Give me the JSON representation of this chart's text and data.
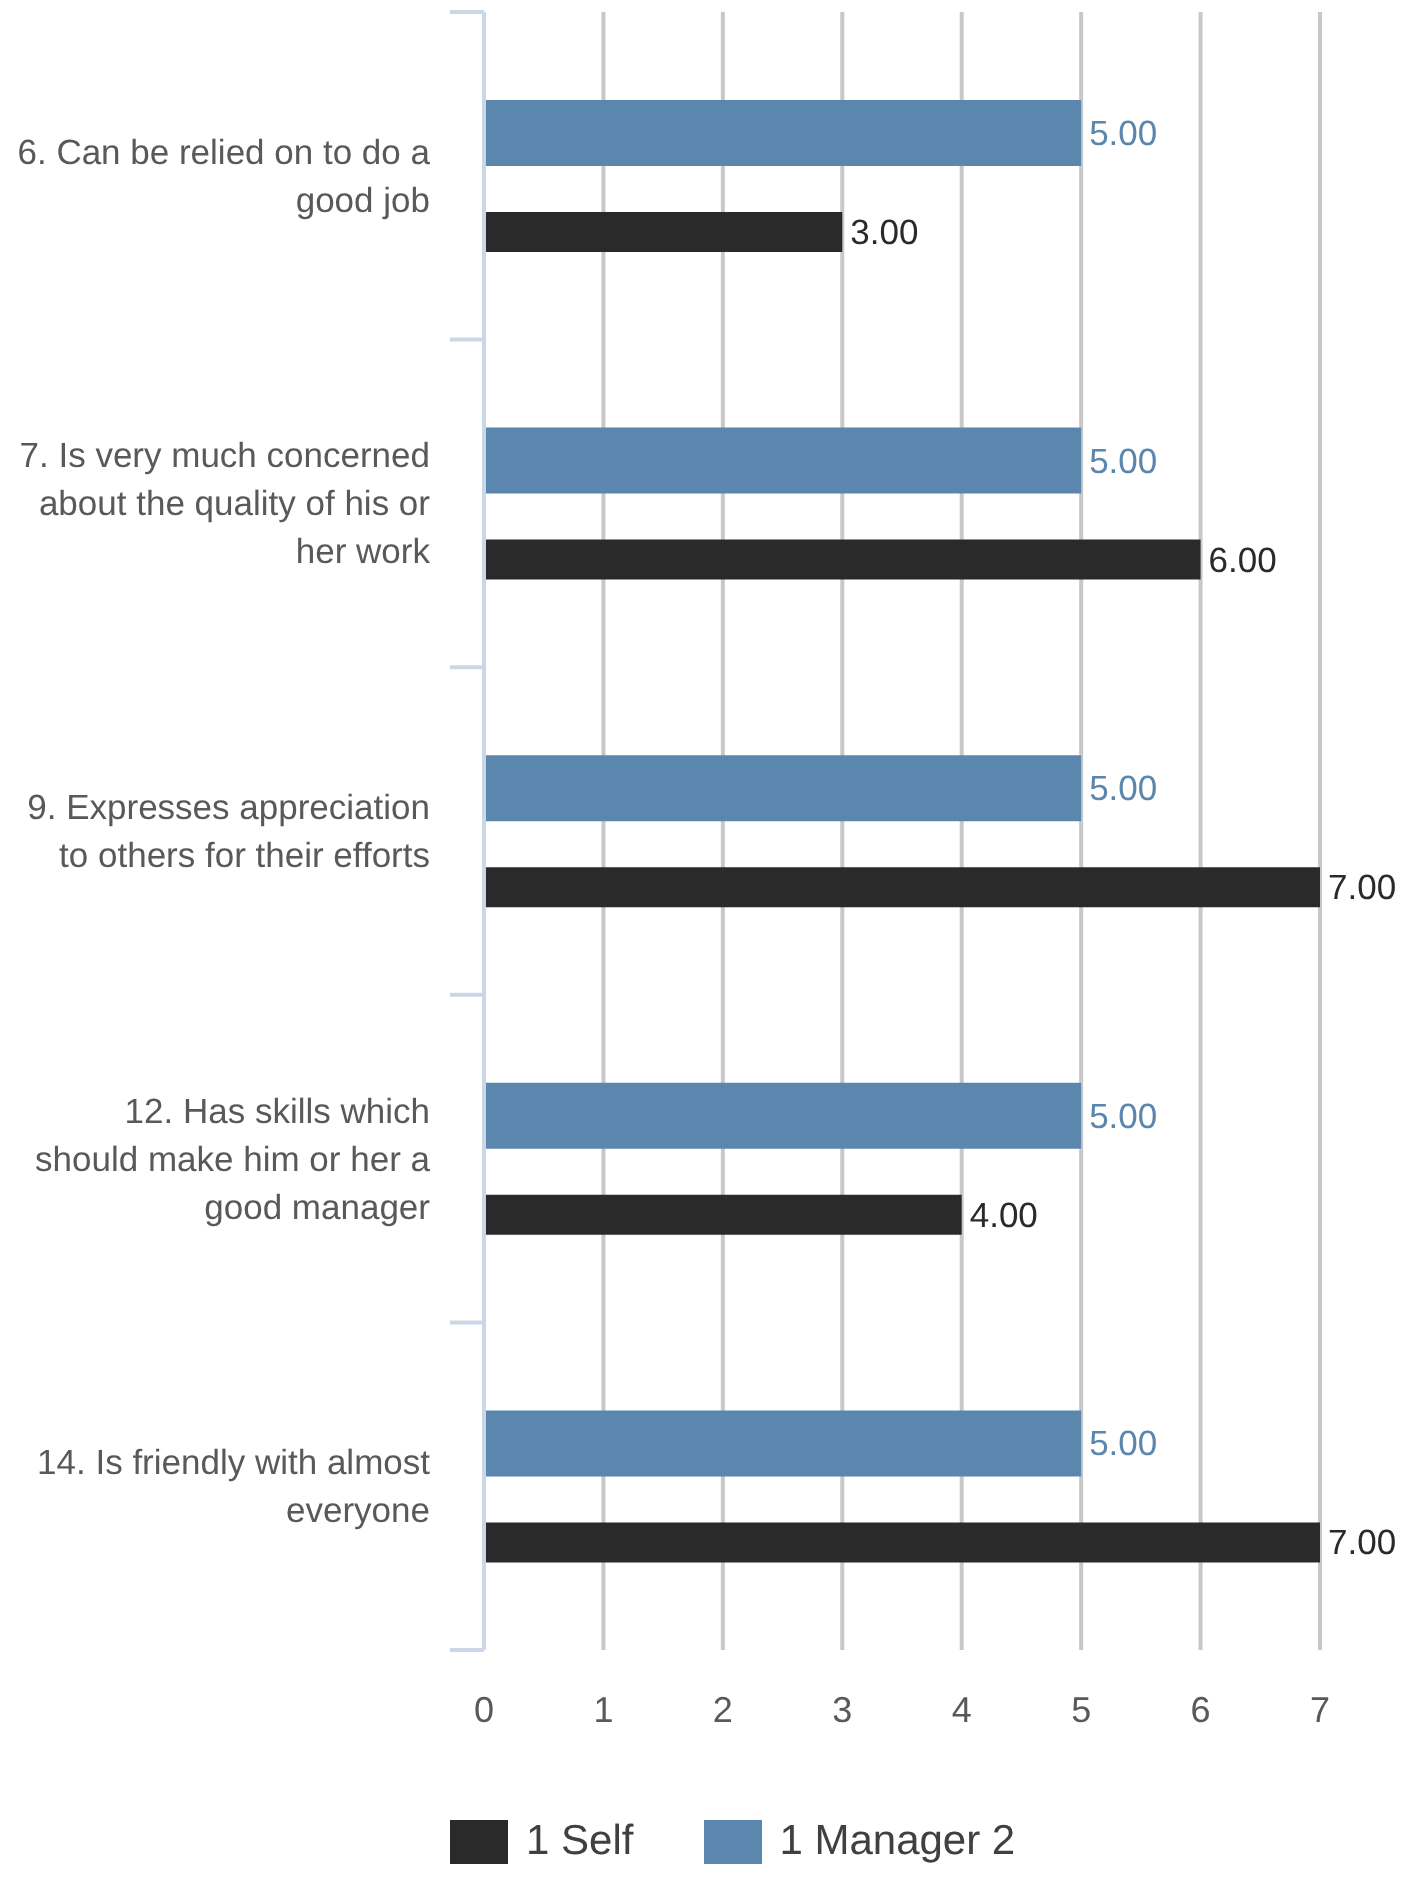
{
  "chart_data": {
    "type": "bar",
    "orientation": "horizontal",
    "categories": [
      "6. Can be relied on to do a good job",
      "7. Is very much concerned about the quality of his or her work",
      "9. Expresses appreciation to others for their efforts",
      "12. Has skills which should make him or her a good manager",
      "14. Is friendly with almost everyone"
    ],
    "series": [
      {
        "name": "1 Self",
        "color": "#2a2a2a",
        "values": [
          3,
          6,
          7,
          4,
          7
        ],
        "value_labels": [
          "3.00",
          "6.00",
          "7.00",
          "4.00",
          "7.00"
        ]
      },
      {
        "name": "1 Manager 2",
        "color": "#5b86ad",
        "values": [
          5,
          5,
          5,
          5,
          5
        ],
        "value_labels": [
          "5.00",
          "5.00",
          "5.00",
          "5.00",
          "5.00"
        ]
      }
    ],
    "xlim": [
      0,
      7
    ],
    "xticks": [
      0,
      1,
      2,
      3,
      4,
      5,
      6,
      7
    ],
    "grid": "x",
    "legend": "bottom"
  }
}
